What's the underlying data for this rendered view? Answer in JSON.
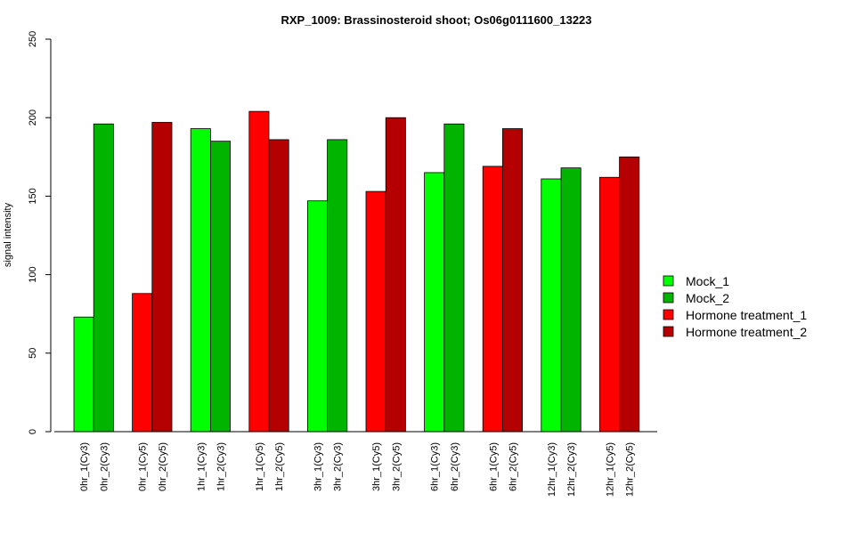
{
  "chart_data": {
    "type": "bar",
    "title": "RXP_1009: Brassinosteroid shoot; Os06g0111600_13223",
    "xlabel": "",
    "ylabel": "signal intensity",
    "ylim": [
      0,
      250
    ],
    "yticks": [
      0,
      50,
      100,
      150,
      200,
      250
    ],
    "grid": false,
    "legend_position": "right",
    "legend": [
      {
        "name": "Mock_1",
        "color": "#00ff00"
      },
      {
        "name": "Mock_2",
        "color": "#00b400"
      },
      {
        "name": "Hormone treatment_1",
        "color": "#ff0000"
      },
      {
        "name": "Hormone treatment_2",
        "color": "#b40000"
      }
    ],
    "bars": [
      {
        "label": "0hr_1(Cy3)",
        "value": 73,
        "series": "Mock_1"
      },
      {
        "label": "0hr_2(Cy3)",
        "value": 196,
        "series": "Mock_2"
      },
      {
        "label": "0hr_1(Cy5)",
        "value": 88,
        "series": "Hormone treatment_1"
      },
      {
        "label": "0hr_2(Cy5)",
        "value": 197,
        "series": "Hormone treatment_2"
      },
      {
        "label": "1hr_1(Cy3)",
        "value": 193,
        "series": "Mock_1"
      },
      {
        "label": "1hr_2(Cy3)",
        "value": 185,
        "series": "Mock_2"
      },
      {
        "label": "1hr_1(Cy5)",
        "value": 204,
        "series": "Hormone treatment_1"
      },
      {
        "label": "1hr_2(Cy5)",
        "value": 186,
        "series": "Hormone treatment_2"
      },
      {
        "label": "3hr_1(Cy3)",
        "value": 147,
        "series": "Mock_1"
      },
      {
        "label": "3hr_2(Cy3)",
        "value": 186,
        "series": "Mock_2"
      },
      {
        "label": "3hr_1(Cy5)",
        "value": 153,
        "series": "Hormone treatment_1"
      },
      {
        "label": "3hr_2(Cy5)",
        "value": 200,
        "series": "Hormone treatment_2"
      },
      {
        "label": "6hr_1(Cy3)",
        "value": 165,
        "series": "Mock_1"
      },
      {
        "label": "6hr_2(Cy3)",
        "value": 196,
        "series": "Mock_2"
      },
      {
        "label": "6hr_1(Cy5)",
        "value": 169,
        "series": "Hormone treatment_1"
      },
      {
        "label": "6hr_2(Cy5)",
        "value": 193,
        "series": "Hormone treatment_2"
      },
      {
        "label": "12hr_1(Cy3)",
        "value": 161,
        "series": "Mock_1"
      },
      {
        "label": "12hr_2(Cy3)",
        "value": 168,
        "series": "Mock_2"
      },
      {
        "label": "12hr_1(Cy5)",
        "value": 162,
        "series": "Hormone treatment_1"
      },
      {
        "label": "12hr_2(Cy5)",
        "value": 175,
        "series": "Hormone treatment_2"
      }
    ]
  }
}
